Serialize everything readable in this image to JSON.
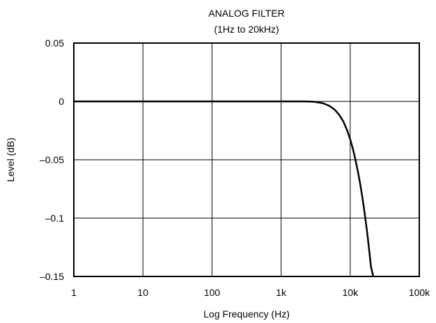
{
  "chart_data": {
    "type": "line",
    "title": "ANALOG FILTER",
    "subtitle": "(1Hz to 20kHz)",
    "xlabel": "Log Frequency (Hz)",
    "ylabel": "Level (dB)",
    "x_scale": "log",
    "xlim": [
      1,
      100000
    ],
    "ylim": [
      -0.15,
      0.05
    ],
    "x_ticks": [
      {
        "value": 1,
        "label": "1"
      },
      {
        "value": 10,
        "label": "10"
      },
      {
        "value": 100,
        "label": "100"
      },
      {
        "value": 1000,
        "label": "1k"
      },
      {
        "value": 10000,
        "label": "10k"
      },
      {
        "value": 100000,
        "label": "100k"
      }
    ],
    "y_ticks": [
      {
        "value": 0.05,
        "label": "0.05"
      },
      {
        "value": 0,
        "label": "0"
      },
      {
        "value": -0.05,
        "label": "–0.05"
      },
      {
        "value": -0.1,
        "label": "–0.1"
      },
      {
        "value": -0.15,
        "label": "–0.15"
      }
    ],
    "grid": true,
    "legend": "none",
    "series": [
      {
        "color": "#000000",
        "x": [
          1,
          10,
          100,
          1000,
          2000,
          2500,
          3000,
          4000,
          5000,
          6000,
          7000,
          8000,
          9000,
          10000,
          11000,
          12000,
          13000,
          14000,
          15000,
          16000,
          17000,
          18000,
          19000,
          20000,
          21600
        ],
        "y": [
          0,
          0,
          0,
          0,
          0,
          -0.0001,
          -0.0003,
          -0.0015,
          -0.0038,
          -0.0072,
          -0.0118,
          -0.0175,
          -0.0245,
          -0.0325,
          -0.0413,
          -0.0508,
          -0.0608,
          -0.0712,
          -0.0822,
          -0.0936,
          -0.1052,
          -0.1172,
          -0.1295,
          -0.1418,
          -0.15
        ]
      }
    ]
  }
}
